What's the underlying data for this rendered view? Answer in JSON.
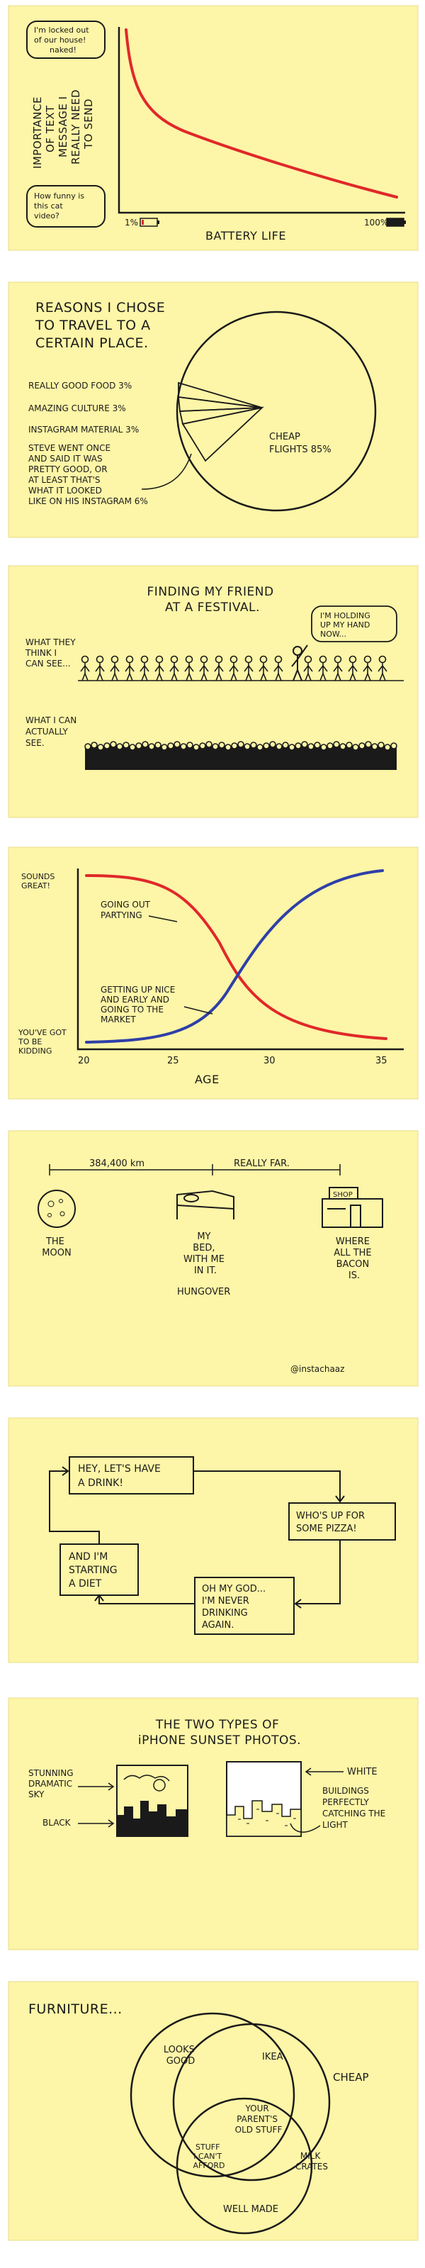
{
  "panel1": {
    "ylabel": [
      "IMPORTANCE",
      "OF TEXT",
      "MESSAGE I",
      "REALLY NEED",
      "TO SEND"
    ],
    "bubble_top": [
      "I'm locked out",
      "of our house!",
      "naked!"
    ],
    "bubble_bottom": [
      "How funny is",
      "this cat",
      "video?"
    ],
    "xmin": "1%",
    "xmax": "100%",
    "xlabel": "BATTERY LIFE"
  },
  "panel2": {
    "title": [
      "REASONS I CHOSE",
      "TO TRAVEL TO A",
      "CERTAIN PLACE."
    ],
    "labels": [
      "REALLY GOOD FOOD 3%",
      "AMAZING CULTURE 3%",
      "INSTAGRAM MATERIAL 3%"
    ],
    "steve": [
      "STEVE WENT ONCE",
      "AND SAID IT WAS",
      "PRETTY GOOD, OR",
      "AT LEAST THAT'S",
      "WHAT IT LOOKED",
      "LIKE ON HIS INSTAGRAM 6%"
    ],
    "cheap": [
      "CHEAP",
      "FLIGHTS 85%"
    ]
  },
  "panel3": {
    "title": [
      "FINDING MY FRIEND",
      "AT A FESTIVAL."
    ],
    "think": [
      "WHAT THEY",
      "THINK I",
      "CAN SEE..."
    ],
    "bubble": [
      "I'M HOLDING",
      "UP MY HAND",
      "NOW..."
    ],
    "actual": [
      "WHAT I CAN",
      "ACTUALLY",
      "SEE."
    ]
  },
  "panel4": {
    "ytop": [
      "SOUNDS",
      "GREAT!"
    ],
    "ybottom": [
      "YOU'VE GOT",
      "TO BE",
      "KIDDING"
    ],
    "red_label": [
      "GOING OUT",
      "PARTYING"
    ],
    "blue_label": [
      "GETTING UP NICE",
      "AND EARLY AND",
      "GOING TO THE",
      "MARKET"
    ],
    "xticks": [
      "20",
      "25",
      "30",
      "35"
    ],
    "xlabel": "AGE"
  },
  "panel5": {
    "distance": "384,400 km",
    "really_far": "REALLY FAR.",
    "moon": [
      "THE",
      "MOON"
    ],
    "bed": [
      "MY",
      "BED,",
      "WITH ME",
      "IN IT."
    ],
    "hungover": "HUNGOVER",
    "shop": "SHOP",
    "bacon": [
      "WHERE",
      "ALL THE",
      "BACON",
      "IS."
    ],
    "handle": "@instachaaz"
  },
  "panel6": {
    "box1": [
      "HEY, LET'S HAVE",
      "A DRINK!"
    ],
    "box2": [
      "WHO'S UP FOR",
      "SOME PIZZA!"
    ],
    "box3": [
      "OH MY GOD...",
      "I'M NEVER",
      "DRINKING",
      "AGAIN."
    ],
    "box4": [
      "AND I'M",
      "STARTING",
      "A DIET"
    ]
  },
  "panel7": {
    "title": [
      "THE TWO TYPES OF",
      "iPHONE SUNSET PHOTOS."
    ],
    "left1": [
      "STUNNING",
      "DRAMATIC",
      "SKY"
    ],
    "left2": "BLACK",
    "right1": "WHITE",
    "right2": [
      "BUILDINGS",
      "PERFECTLY",
      "CATCHING THE",
      "LIGHT"
    ]
  },
  "panel8": {
    "title": "FURNITURE...",
    "looks_good": [
      "LOOKS",
      "GOOD"
    ],
    "ikea": "IKEA",
    "cheap": "CHEAP",
    "parents": [
      "YOUR",
      "PARENT'S",
      "OLD STUFF"
    ],
    "cant_afford": [
      "STUFF",
      "I CAN'T",
      "AFFORD"
    ],
    "milk": [
      "MILK",
      "CRATES"
    ],
    "well_made": "WELL MADE"
  }
}
